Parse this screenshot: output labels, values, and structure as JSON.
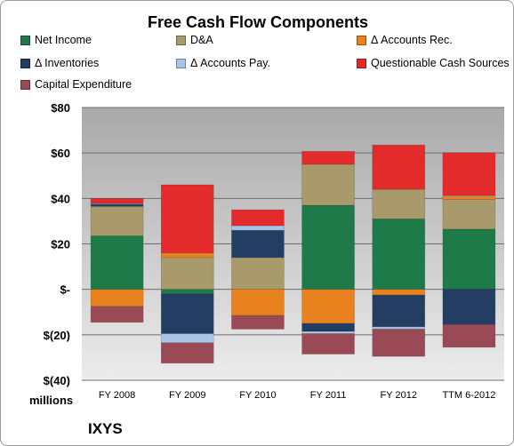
{
  "chart_data": {
    "type": "bar",
    "stacked": true,
    "title": "Free Cash Flow Components",
    "categories": [
      "FY 2008",
      "FY 2009",
      "FY 2010",
      "FY 2011",
      "FY 2012",
      "TTM 6-2012"
    ],
    "unit_label": "millions",
    "ylim": [
      -40,
      80
    ],
    "yticks": [
      80,
      60,
      40,
      20,
      0,
      -20,
      -40
    ],
    "ytick_labels": [
      "$80",
      "$60",
      "$40",
      "$20",
      "$-",
      "$(20)",
      "$(40)"
    ],
    "legend_position": "top",
    "series": [
      {
        "name": "Net Income",
        "color": "#1f7a4a",
        "values": [
          23.5,
          -2,
          0,
          37,
          31,
          26.5
        ]
      },
      {
        "name": "D&A",
        "color": "#a89a6a",
        "values": [
          13,
          14,
          14,
          18,
          13,
          13
        ]
      },
      {
        "name": "Δ Accounts Rec.",
        "color": "#e8821e",
        "values": [
          -7.5,
          2,
          -11.5,
          -15,
          -2.5,
          1.5
        ]
      },
      {
        "name": "Δ Inventories",
        "color": "#243d63",
        "values": [
          1,
          -17.5,
          12,
          -3.5,
          -14,
          -15.5
        ]
      },
      {
        "name": "Δ Accounts Pay.",
        "color": "#a9c4e6",
        "values": [
          0.3,
          -4,
          2,
          -1,
          -1,
          0.3
        ]
      },
      {
        "name": "Questionable Cash Sources",
        "color": "#e32b2b",
        "values": [
          2.2,
          30,
          7,
          5.7,
          19.5,
          18.8
        ]
      },
      {
        "name": "Capital Expenditure",
        "color": "#9a4a54",
        "values": [
          -7,
          -9,
          -6,
          -9,
          -12,
          -10
        ]
      }
    ]
  },
  "footer": {
    "company": "IXYS"
  }
}
